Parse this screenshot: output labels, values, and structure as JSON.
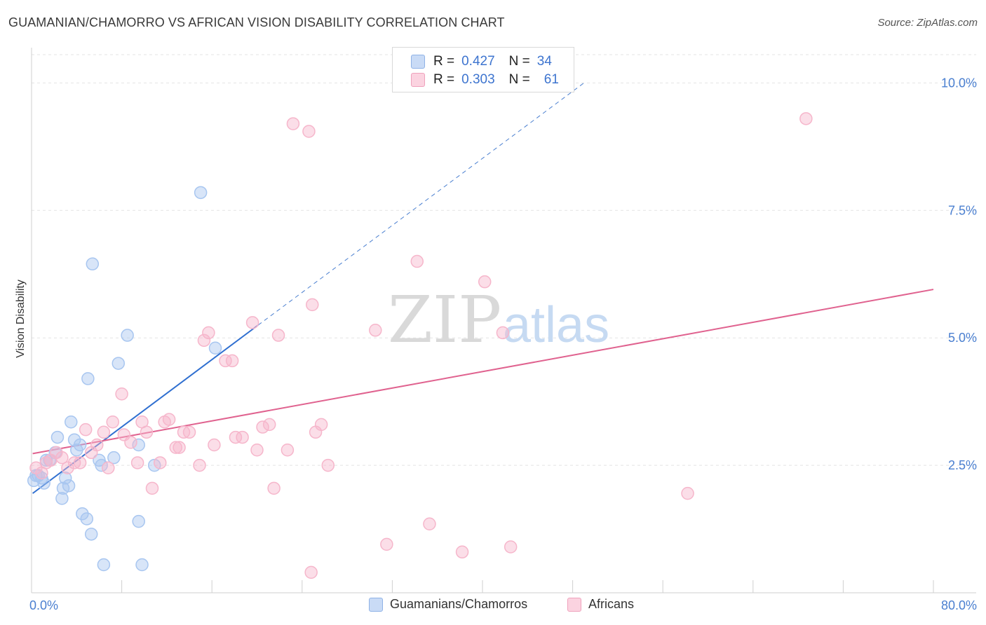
{
  "title": "GUAMANIAN/CHAMORRO VS AFRICAN VISION DISABILITY CORRELATION CHART",
  "source": "Source: ZipAtlas.com",
  "watermark": {
    "zip": "ZIP",
    "atlas": "atlas"
  },
  "legend_top": [
    {
      "r_label": "R =",
      "r_value": "0.427",
      "n_label": "N =",
      "n_value": "34",
      "color": "#a8c6f0"
    },
    {
      "r_label": "R =",
      "r_value": "0.303",
      "n_label": "N =",
      "n_value": "61",
      "color": "#f6b6cb"
    }
  ],
  "legend_bottom": [
    {
      "label": "Guamanians/Chamorros",
      "color": "#a8c6f0"
    },
    {
      "label": "Africans",
      "color": "#f6b6cb"
    }
  ],
  "chart_data": {
    "type": "scatter",
    "title": "GUAMANIAN/CHAMORRO VS AFRICAN VISION DISABILITY CORRELATION CHART",
    "xlabel": "",
    "ylabel": "Vision Disability",
    "xlim": [
      0,
      80
    ],
    "ylim": [
      0,
      10.5
    ],
    "x_tick_labels": [
      "0.0%",
      "80.0%"
    ],
    "y_ticks": [
      2.5,
      5.0,
      7.5,
      10.0
    ],
    "y_tick_labels": [
      "2.5%",
      "5.0%",
      "7.5%",
      "10.0%"
    ],
    "grid": true,
    "series": [
      {
        "name": "Guamanians/Chamorros",
        "color": "#4a7fd0",
        "fill": "#a8c6f0",
        "trend": {
          "x0": 0.1,
          "y0": 1.95,
          "x1": 20.1,
          "y1": 5.25,
          "dash_x1": 49,
          "dash_y1": 10.0
        },
        "points": [
          [
            0.2,
            2.2
          ],
          [
            0.4,
            2.3
          ],
          [
            0.6,
            2.3
          ],
          [
            0.9,
            2.25
          ],
          [
            1.1,
            2.15
          ],
          [
            1.3,
            2.6
          ],
          [
            1.6,
            2.6
          ],
          [
            2.1,
            2.75
          ],
          [
            2.3,
            3.05
          ],
          [
            2.7,
            1.85
          ],
          [
            2.8,
            2.05
          ],
          [
            3.0,
            2.25
          ],
          [
            3.3,
            2.1
          ],
          [
            3.5,
            3.35
          ],
          [
            3.8,
            3.0
          ],
          [
            4.0,
            2.8
          ],
          [
            4.3,
            2.9
          ],
          [
            4.5,
            1.55
          ],
          [
            4.9,
            1.45
          ],
          [
            5.3,
            1.15
          ],
          [
            5.4,
            6.45
          ],
          [
            5.0,
            4.2
          ],
          [
            6.2,
            2.5
          ],
          [
            6.4,
            0.55
          ],
          [
            7.3,
            2.65
          ],
          [
            7.7,
            4.5
          ],
          [
            8.5,
            5.05
          ],
          [
            9.5,
            1.4
          ],
          [
            9.5,
            2.9
          ],
          [
            9.8,
            0.55
          ],
          [
            10.9,
            2.5
          ],
          [
            15.0,
            7.85
          ],
          [
            16.3,
            4.8
          ],
          [
            6.0,
            2.6
          ]
        ]
      },
      {
        "name": "Africans",
        "color": "#e0628f",
        "fill": "#f6b6cb",
        "trend": {
          "x0": 0.1,
          "y0": 2.73,
          "x1": 80,
          "y1": 5.95
        },
        "points": [
          [
            0.4,
            2.45
          ],
          [
            0.9,
            2.35
          ],
          [
            1.3,
            2.55
          ],
          [
            1.7,
            2.6
          ],
          [
            2.2,
            2.75
          ],
          [
            2.7,
            2.65
          ],
          [
            3.2,
            2.45
          ],
          [
            3.8,
            2.55
          ],
          [
            4.3,
            2.55
          ],
          [
            4.8,
            3.2
          ],
          [
            5.3,
            2.75
          ],
          [
            5.8,
            2.9
          ],
          [
            6.4,
            3.15
          ],
          [
            6.8,
            2.45
          ],
          [
            7.2,
            3.35
          ],
          [
            8.0,
            3.9
          ],
          [
            8.2,
            3.1
          ],
          [
            8.8,
            2.95
          ],
          [
            9.4,
            2.55
          ],
          [
            9.8,
            3.35
          ],
          [
            10.2,
            3.15
          ],
          [
            10.7,
            2.05
          ],
          [
            11.4,
            2.55
          ],
          [
            11.8,
            3.35
          ],
          [
            12.2,
            3.4
          ],
          [
            12.8,
            2.85
          ],
          [
            13.1,
            2.85
          ],
          [
            13.5,
            3.15
          ],
          [
            14.0,
            3.15
          ],
          [
            14.9,
            2.5
          ],
          [
            15.3,
            4.95
          ],
          [
            15.7,
            5.1
          ],
          [
            16.2,
            2.9
          ],
          [
            17.2,
            4.55
          ],
          [
            17.8,
            4.55
          ],
          [
            18.1,
            3.05
          ],
          [
            18.7,
            3.05
          ],
          [
            19.6,
            5.3
          ],
          [
            20.0,
            2.8
          ],
          [
            20.5,
            3.25
          ],
          [
            21.1,
            3.3
          ],
          [
            21.5,
            2.05
          ],
          [
            21.9,
            5.05
          ],
          [
            22.7,
            2.8
          ],
          [
            23.2,
            9.2
          ],
          [
            24.6,
            9.05
          ],
          [
            24.8,
            0.4
          ],
          [
            24.9,
            5.65
          ],
          [
            25.2,
            3.15
          ],
          [
            25.7,
            3.3
          ],
          [
            26.3,
            2.5
          ],
          [
            30.5,
            5.15
          ],
          [
            31.5,
            0.95
          ],
          [
            34.2,
            6.5
          ],
          [
            35.3,
            1.35
          ],
          [
            38.2,
            0.8
          ],
          [
            40.2,
            6.1
          ],
          [
            41.8,
            5.1
          ],
          [
            42.5,
            0.9
          ],
          [
            58.2,
            1.95
          ],
          [
            68.7,
            9.3
          ]
        ]
      }
    ]
  }
}
